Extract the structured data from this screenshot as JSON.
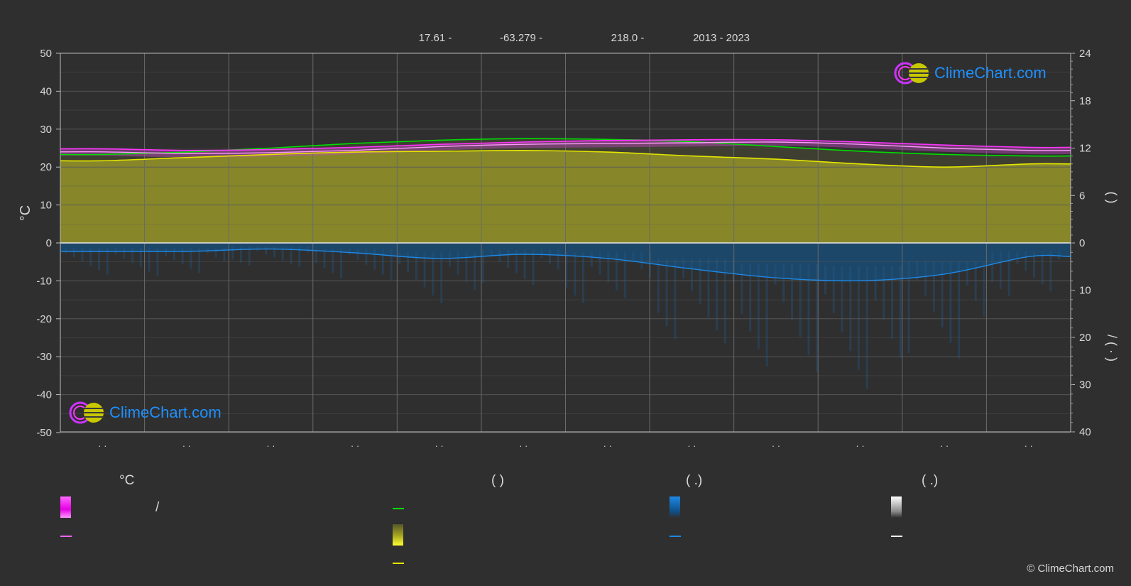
{
  "header": {
    "latitude": "17.61 -",
    "longitude": "-63.279 -",
    "elevation": "218.0 -",
    "years": "2013 - 2023"
  },
  "brand": {
    "name": "ClimeChart.com",
    "copyright": "© ClimeChart.com"
  },
  "colors": {
    "background": "#2f2f2f",
    "daylight": "#00dd00",
    "sunshine": "#e5e500",
    "sunshine_fill": "#8c8c2a",
    "temp_max": "#ff33ff",
    "temp_mean": "#ff99ff",
    "precipitation": "#1e88e5",
    "brand": "#1e90ff"
  },
  "legend": {
    "col1_heading": "°C",
    "col1_slash": "/",
    "col2_heading": "(          )",
    "col3_heading": "(    .)",
    "col4_heading": "(    .)"
  },
  "chart_data": {
    "type": "line",
    "left_axis": {
      "label": "°C",
      "range": [
        -50,
        50
      ],
      "ticks": [
        "50",
        "40",
        "30",
        "20",
        "10",
        "0",
        "-10",
        "-20",
        "-30",
        "-40",
        "-50"
      ]
    },
    "right_axis_top": {
      "label": "(          )",
      "range": [
        0,
        24
      ],
      "ticks": [
        "24",
        "18",
        "12",
        "6",
        "0"
      ]
    },
    "right_axis_bottom": {
      "label": "/        (  ·  )",
      "range": [
        0,
        40
      ],
      "ticks": [
        "0",
        "10",
        "20",
        "30",
        "40"
      ]
    },
    "month_labels": [
      "· ·",
      "· ·",
      "· ·",
      "· ·",
      "· ·",
      "· ·",
      "· ·",
      "· ·",
      "· ·",
      "· ·",
      "· ·",
      "· ·"
    ],
    "grid": true,
    "x_months": [
      0.5,
      1.5,
      2.5,
      3.5,
      4.5,
      5.5,
      6.5,
      7.5,
      8.5,
      9.5,
      10.5,
      11.5
    ],
    "series": [
      {
        "key": "temp_max",
        "values": [
          24.8,
          24.4,
          24.6,
          25.2,
          26.0,
          26.6,
          27.0,
          27.2,
          27.2,
          26.6,
          25.8,
          25.2
        ]
      },
      {
        "key": "temp_mean",
        "values": [
          24.0,
          23.6,
          23.8,
          24.4,
          25.4,
          26.0,
          26.2,
          26.4,
          26.6,
          26.0,
          25.0,
          24.4
        ]
      },
      {
        "key": "daylight_hours",
        "values": [
          11.2,
          11.5,
          12.0,
          12.6,
          13.0,
          13.2,
          13.1,
          12.8,
          12.2,
          11.6,
          11.2,
          11.0
        ]
      },
      {
        "key": "sunshine_hours",
        "values": [
          10.4,
          10.8,
          11.2,
          11.5,
          11.6,
          11.7,
          11.5,
          11.0,
          10.6,
          10.0,
          9.6,
          10.0
        ]
      },
      {
        "key": "precipitation_mm",
        "values": [
          1.8,
          1.8,
          1.3,
          2.1,
          3.3,
          2.4,
          3.3,
          5.5,
          7.4,
          8.0,
          6.6,
          2.9
        ]
      }
    ]
  }
}
